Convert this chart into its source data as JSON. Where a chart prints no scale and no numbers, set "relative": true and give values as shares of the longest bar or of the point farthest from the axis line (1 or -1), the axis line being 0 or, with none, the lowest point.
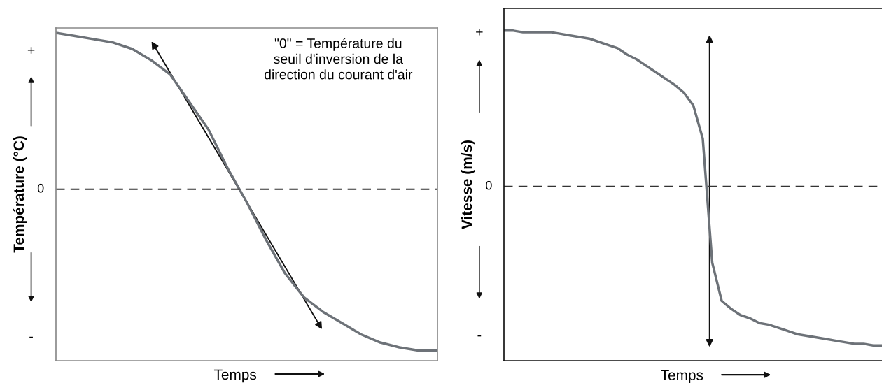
{
  "chart_data": [
    {
      "type": "line",
      "relative": true,
      "xlabel": "Temps",
      "ylabel": "Température (°C)",
      "categories": [
        null,
        null,
        null,
        null,
        null,
        null,
        null,
        null,
        null,
        null,
        null,
        null,
        null,
        null,
        null,
        null,
        null,
        null,
        null,
        null,
        null
      ],
      "series": [
        {
          "color": "#6d7278",
          "values": [
            0.97,
            0.95,
            0.93,
            0.91,
            0.87,
            0.8,
            0.71,
            0.54,
            0.37,
            0.13,
            -0.08,
            -0.31,
            -0.52,
            -0.67,
            -0.76,
            -0.83,
            -0.9,
            -0.95,
            -0.98,
            -1.0,
            -1.0
          ]
        }
      ],
      "ref_lines": [
        {
          "axis": "y",
          "value": 0,
          "label": "0",
          "line_style": "dashed",
          "color": "#333333"
        }
      ],
      "annotations": [
        "+",
        "-",
        "\"0\" = Température du\nseuil d'inversion de la\ndirection du courant d'air"
      ]
    },
    {
      "type": "line",
      "relative": true,
      "xlabel": "Temps",
      "ylabel": "Vitesse (m/s)",
      "categories": [
        null,
        null,
        null,
        null,
        null,
        null,
        null,
        null,
        null,
        null,
        null,
        null,
        null,
        null,
        null,
        null,
        null,
        null,
        null,
        null,
        null,
        null,
        null,
        null,
        null,
        null,
        null,
        null,
        null,
        null,
        null,
        null,
        null,
        null,
        null,
        null,
        null,
        null,
        null,
        null,
        null
      ],
      "series": [
        {
          "color": "#6d7278",
          "values": [
            0.98,
            0.98,
            0.97,
            0.97,
            0.97,
            0.97,
            0.96,
            0.95,
            0.94,
            0.93,
            0.91,
            0.89,
            0.87,
            0.83,
            0.8,
            0.76,
            0.72,
            0.68,
            0.64,
            0.59,
            0.51,
            0.3,
            -0.48,
            -0.72,
            -0.77,
            -0.81,
            -0.83,
            -0.86,
            -0.87,
            -0.89,
            -0.91,
            -0.93,
            -0.94,
            -0.95,
            -0.96,
            -0.97,
            -0.98,
            -0.99,
            -0.99,
            -1.0,
            -1.0
          ]
        }
      ],
      "ref_lines": [
        {
          "axis": "y",
          "value": 0,
          "label": "0",
          "line_style": "dashed",
          "color": "#333333"
        }
      ],
      "annotations": [
        "+",
        "-"
      ]
    }
  ]
}
